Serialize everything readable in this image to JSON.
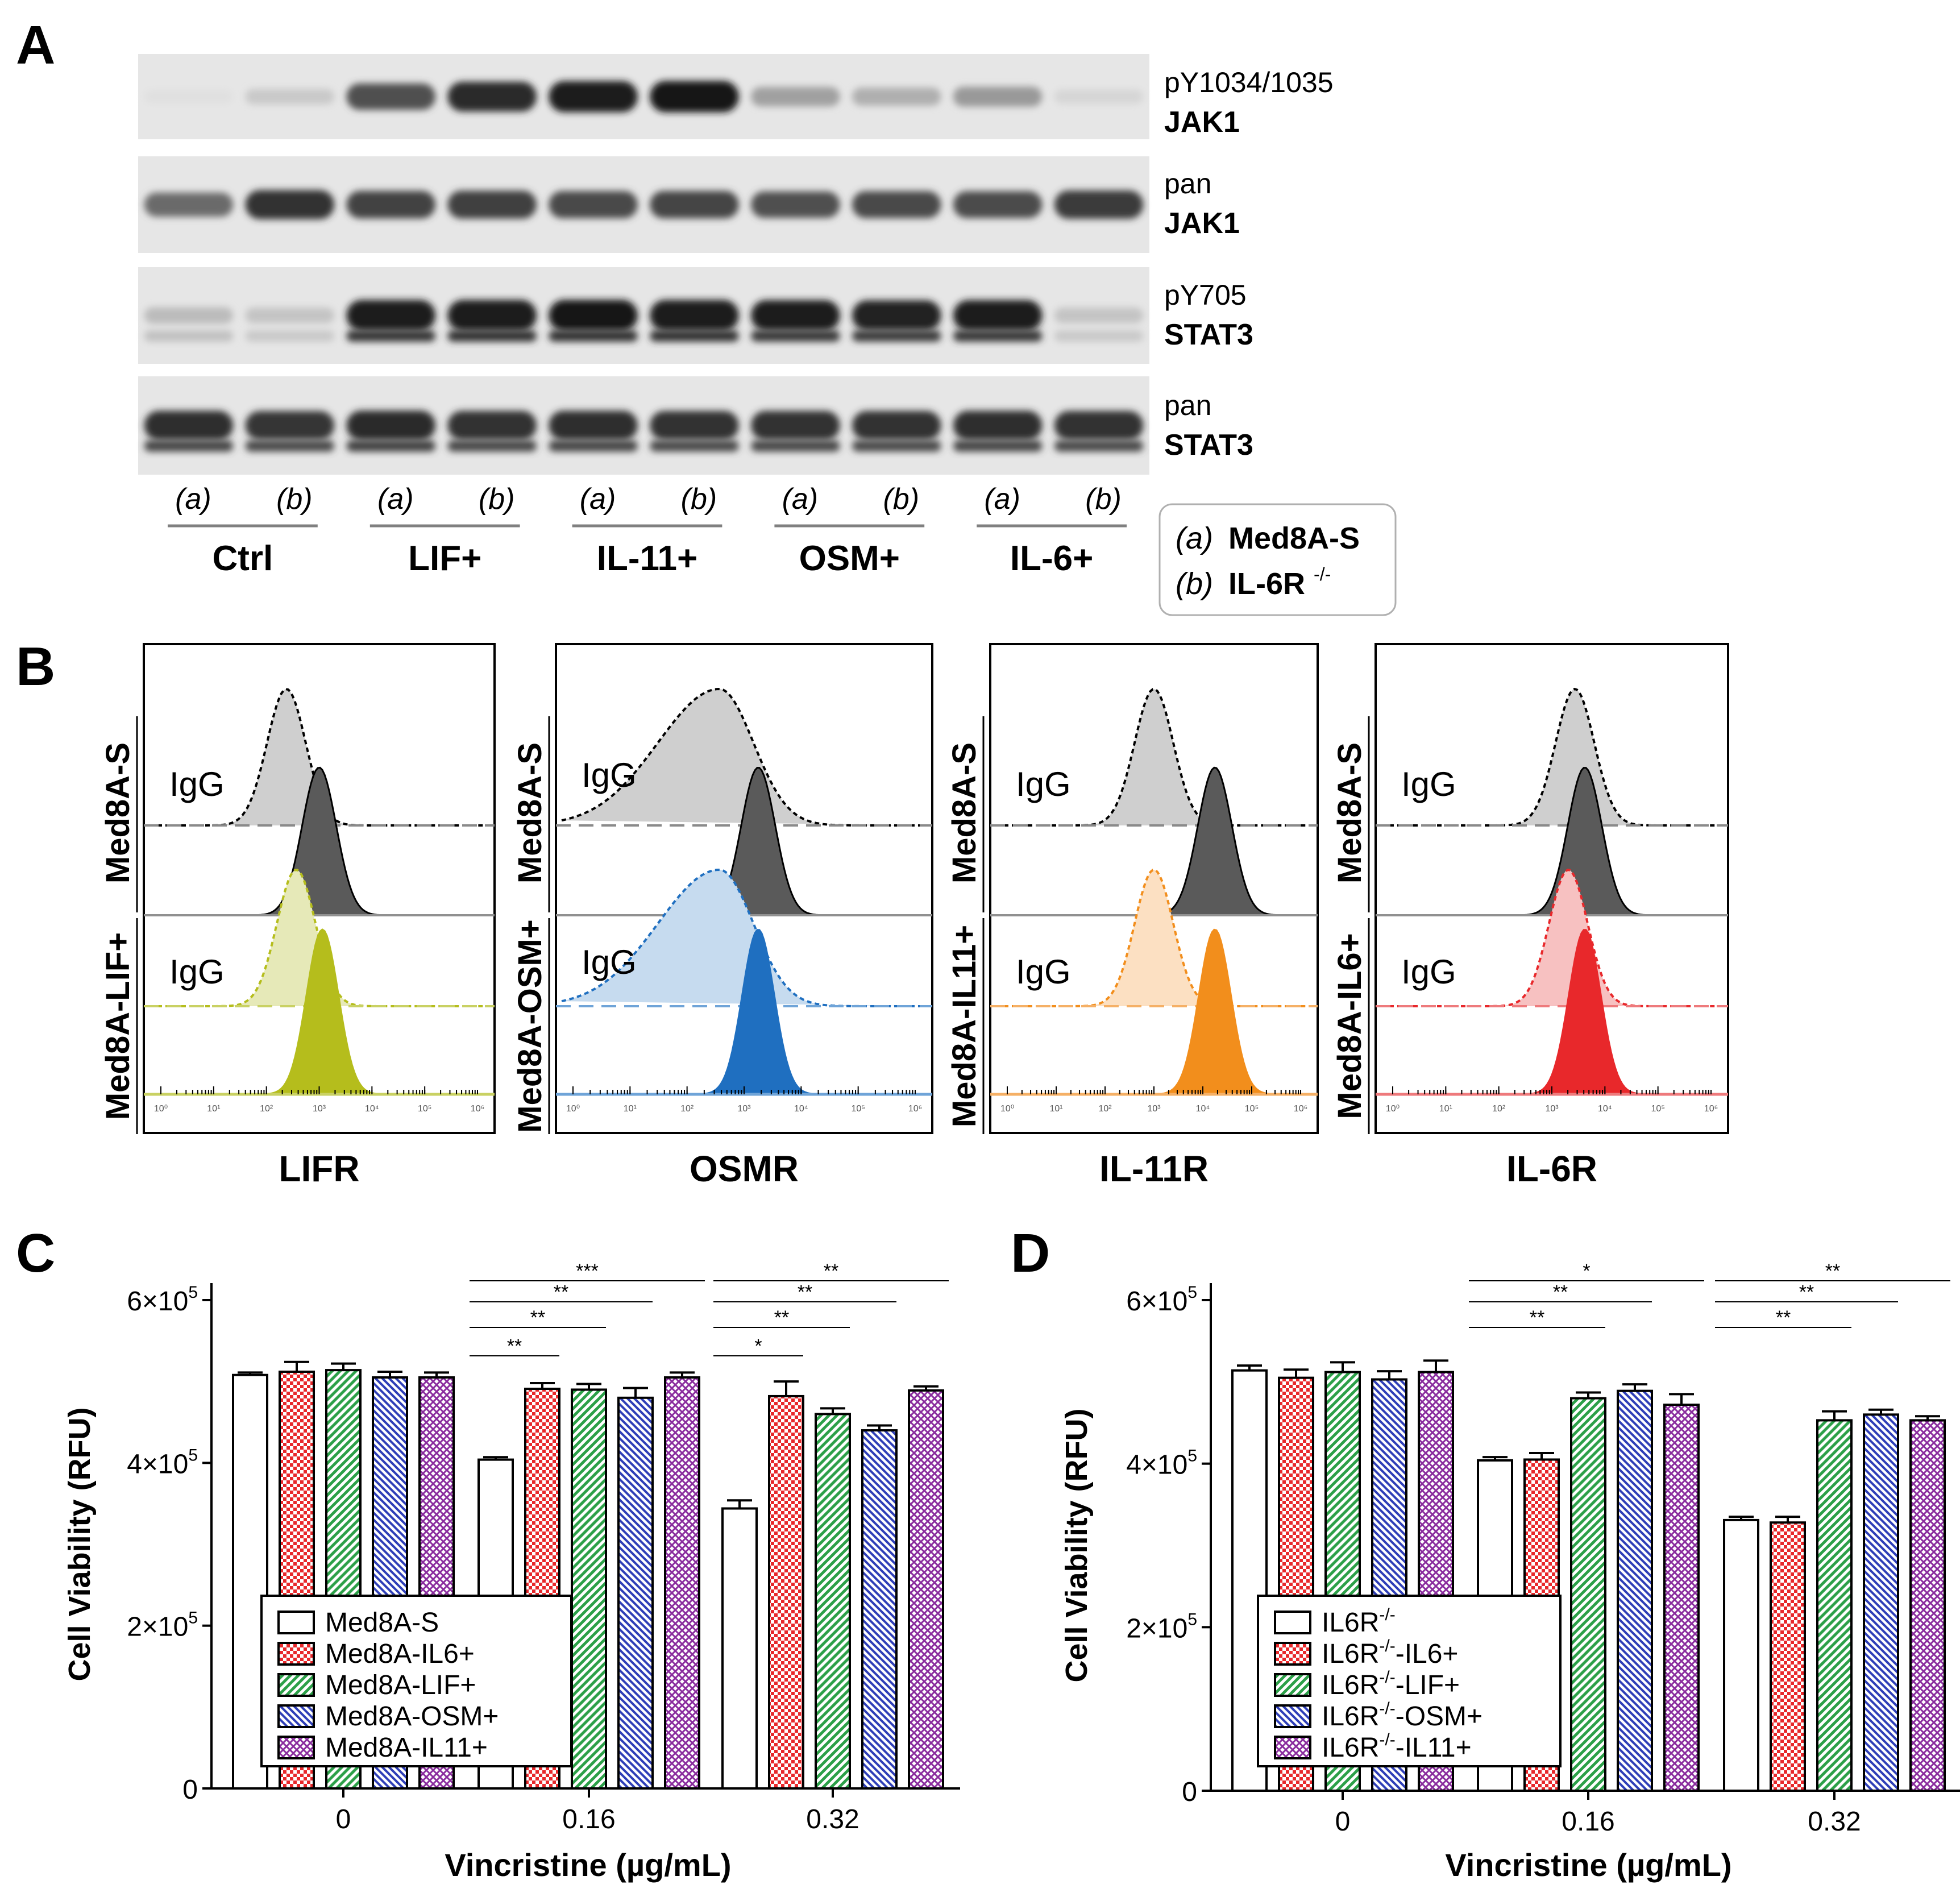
{
  "panel_a": {
    "letter": "A",
    "blots": [
      {
        "label1": "pY1034/1035",
        "label2": "JAK1",
        "bands": [
          0.05,
          0.16,
          0.72,
          0.9,
          0.96,
          0.98,
          0.35,
          0.28,
          0.38,
          0.1
        ]
      },
      {
        "label1": "pan",
        "label2": "JAK1",
        "bands": [
          0.6,
          0.86,
          0.78,
          0.8,
          0.76,
          0.77,
          0.72,
          0.75,
          0.74,
          0.82
        ]
      },
      {
        "label1": "pY705",
        "label2": "STAT3",
        "bands": [
          0.22,
          0.18,
          0.96,
          0.97,
          0.98,
          0.97,
          0.95,
          0.93,
          0.95,
          0.18
        ]
      },
      {
        "label1": "pan",
        "label2": "STAT3",
        "bands": [
          0.88,
          0.85,
          0.9,
          0.87,
          0.88,
          0.86,
          0.87,
          0.86,
          0.88,
          0.86
        ]
      }
    ],
    "lane_labels": [
      "(a)",
      "(b)",
      "(a)",
      "(b)",
      "(a)",
      "(b)",
      "(a)",
      "(b)",
      "(a)",
      "(b)"
    ],
    "groups": [
      "Ctrl",
      "LIF+",
      "IL-11+",
      "OSM+",
      "IL-6+"
    ],
    "legend": {
      "line_a_code": "(a)",
      "line_a_text": "Med8A-S",
      "line_b_code": "(b)",
      "line_b_text": "IL-6R",
      "line_b_sup": "-/-"
    }
  },
  "panel_b": {
    "letter": "B",
    "igg_label": "IgG",
    "top_row_label": "Med8A-S",
    "panels": [
      {
        "receptor": "LIFR",
        "bottom_row_label": "Med8A-LIF+",
        "color": "#b5bd1c",
        "light_color": "#e6e9b8",
        "dash_color": "#c9d163",
        "igg_top": 0.4,
        "stain_top": 0.5,
        "igg_bottom": 0.43,
        "stain_bottom": 0.51
      },
      {
        "receptor": "OSMR",
        "bottom_row_label": "Med8A-OSM+",
        "color": "#1f6fc0",
        "light_color": "#c6dbef",
        "dash_color": "#6fa4d8",
        "igg_top": 0.43,
        "stain_top": 0.54,
        "igg_bottom": 0.43,
        "stain_bottom": 0.54
      },
      {
        "receptor": "IL-11R",
        "bottom_row_label": "Med8A-IL11+",
        "color": "#f28e1c",
        "light_color": "#fce0c2",
        "dash_color": "#f5b066",
        "igg_top": 0.5,
        "stain_top": 0.7,
        "igg_bottom": 0.5,
        "stain_bottom": 0.7
      },
      {
        "receptor": "IL-6R",
        "bottom_row_label": "Med8A-IL6+",
        "color": "#e8282b",
        "light_color": "#f7c1c1",
        "dash_color": "#ee7a7c",
        "igg_top": 0.57,
        "stain_top": 0.6,
        "igg_bottom": 0.55,
        "stain_bottom": 0.6
      }
    ],
    "tick_labels": [
      "10⁰",
      "10¹",
      "10²",
      "10³",
      "10⁴",
      "10⁵",
      "10⁶"
    ]
  },
  "chart_data": [
    {
      "panel": "C",
      "type": "bar",
      "xlabel": "Vincristine (µg/mL)",
      "ylabel": "Cell Viability (RFU)",
      "ylim": [
        0,
        600000
      ],
      "yticks": [
        {
          "v": 0,
          "base": "0",
          "exp": ""
        },
        {
          "v": 200000,
          "base": "2×10",
          "exp": "5"
        },
        {
          "v": 400000,
          "base": "4×10",
          "exp": "5"
        },
        {
          "v": 600000,
          "base": "6×10",
          "exp": "5"
        }
      ],
      "categories": [
        "0",
        "0.16",
        "0.32"
      ],
      "series": [
        {
          "name": "Med8A-S",
          "pattern": "white",
          "values": [
            508000,
            404000,
            344000
          ],
          "errors": [
            3000,
            3000,
            10000
          ]
        },
        {
          "name": "Med8A-IL6+",
          "pattern": "red",
          "values": [
            512000,
            491000,
            482000
          ],
          "errors": [
            12000,
            7000,
            18000
          ]
        },
        {
          "name": "Med8A-LIF+",
          "pattern": "green",
          "values": [
            514000,
            490000,
            460000
          ],
          "errors": [
            8000,
            7000,
            7000
          ]
        },
        {
          "name": "Med8A-OSM+",
          "pattern": "blue",
          "values": [
            505000,
            480000,
            440000
          ],
          "errors": [
            7000,
            12000,
            6000
          ]
        },
        {
          "name": "Med8A-IL11+",
          "pattern": "purple",
          "values": [
            505000,
            505000,
            489000
          ],
          "errors": [
            6000,
            6000,
            5000
          ]
        }
      ],
      "significance": [
        {
          "cat": 1,
          "from": 0,
          "to": 1,
          "label": "**",
          "level": 0
        },
        {
          "cat": 1,
          "from": 0,
          "to": 2,
          "label": "**",
          "level": 1
        },
        {
          "cat": 1,
          "from": 0,
          "to": 3,
          "label": "**",
          "level": 2
        },
        {
          "cat": 1,
          "from": 0,
          "to": 4,
          "label": "***",
          "level": 3
        },
        {
          "cat": 2,
          "from": 0,
          "to": 1,
          "label": "*",
          "level": 0
        },
        {
          "cat": 2,
          "from": 0,
          "to": 2,
          "label": "**",
          "level": 1
        },
        {
          "cat": 2,
          "from": 0,
          "to": 3,
          "label": "**",
          "level": 2
        },
        {
          "cat": 2,
          "from": 0,
          "to": 4,
          "label": "**",
          "level": 3
        }
      ]
    },
    {
      "panel": "D",
      "type": "bar",
      "xlabel": "Vincristine (µg/mL)",
      "ylabel": "Cell Viability (RFU)",
      "ylim": [
        0,
        600000
      ],
      "yticks": [
        {
          "v": 0,
          "base": "0",
          "exp": ""
        },
        {
          "v": 200000,
          "base": "2×10",
          "exp": "5"
        },
        {
          "v": 400000,
          "base": "4×10",
          "exp": "5"
        },
        {
          "v": 600000,
          "base": "6×10",
          "exp": "5"
        }
      ],
      "categories": [
        "0",
        "0.16",
        "0.32"
      ],
      "series": [
        {
          "name": "IL6R-/-",
          "legend_base": "IL6R",
          "legend_sup": "-/-",
          "legend_suffix": "",
          "pattern": "white",
          "values": [
            514000,
            404000,
            331000
          ],
          "errors": [
            6000,
            4000,
            4000
          ]
        },
        {
          "name": "IL6R-/--IL6+",
          "legend_base": "IL6R",
          "legend_sup": "-/-",
          "legend_suffix": "-IL6+",
          "pattern": "red",
          "values": [
            505000,
            405000,
            328000
          ],
          "errors": [
            10000,
            8000,
            7000
          ]
        },
        {
          "name": "IL6R-/--LIF+",
          "legend_base": "IL6R",
          "legend_sup": "-/-",
          "legend_suffix": "-LIF+",
          "pattern": "green",
          "values": [
            512000,
            480000,
            453000
          ],
          "errors": [
            12000,
            7000,
            11000
          ]
        },
        {
          "name": "IL6R-/--OSM+",
          "legend_base": "IL6R",
          "legend_sup": "-/-",
          "legend_suffix": "-OSM+",
          "pattern": "blue",
          "values": [
            503000,
            489000,
            460000
          ],
          "errors": [
            10000,
            8000,
            6000
          ]
        },
        {
          "name": "IL6R-/--IL11+",
          "legend_base": "IL6R",
          "legend_sup": "-/-",
          "legend_suffix": "-IL11+",
          "pattern": "purple",
          "values": [
            512000,
            472000,
            453000
          ],
          "errors": [
            14000,
            13000,
            5000
          ]
        }
      ],
      "significance": [
        {
          "cat": 1,
          "from": 0,
          "to": 2,
          "label": "**",
          "level": 1
        },
        {
          "cat": 1,
          "from": 0,
          "to": 3,
          "label": "**",
          "level": 2
        },
        {
          "cat": 1,
          "from": 0,
          "to": 4,
          "label": "*",
          "level": 3
        },
        {
          "cat": 2,
          "from": 0,
          "to": 2,
          "label": "**",
          "level": 1
        },
        {
          "cat": 2,
          "from": 0,
          "to": 3,
          "label": "**",
          "level": 2
        },
        {
          "cat": 2,
          "from": 0,
          "to": 4,
          "label": "**",
          "level": 3
        }
      ]
    }
  ],
  "colors": {
    "red": "#e8282b",
    "green": "#2ca048",
    "blue": "#2f3fb8",
    "purple": "#8a2c9e",
    "ink": "#000000"
  }
}
